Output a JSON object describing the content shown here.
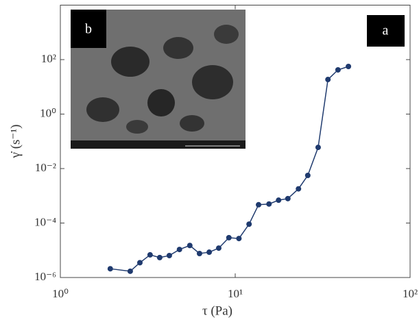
{
  "chart_data": {
    "type": "line",
    "xlabel": "τ (Pa)",
    "ylabel": "γ̇ (s⁻¹)",
    "log_x": true,
    "log_y": true,
    "x": [
      1.93,
      2.51,
      2.85,
      3.26,
      3.7,
      4.2,
      4.8,
      5.5,
      6.25,
      7.1,
      8.05,
      9.2,
      10.5,
      12,
      13.6,
      15.6,
      17.7,
      20,
      23,
      26,
      29.8,
      33.9,
      38.7,
      44.4
    ],
    "series": [
      {
        "color": "#1f3a6e",
        "values": [
          2.1e-06,
          1.7e-06,
          3.5e-06,
          6.8e-06,
          5.4e-06,
          6.4e-06,
          1.07e-05,
          1.5e-05,
          7.6e-06,
          8.5e-06,
          1.2e-05,
          2.9e-05,
          2.7e-05,
          9.1e-05,
          0.00047,
          0.0005,
          0.00069,
          0.00079,
          0.0018,
          0.0056,
          0.06,
          18.6,
          42,
          56
        ]
      }
    ],
    "xlim": [
      1,
      100
    ],
    "ylim": [
      1e-06,
      10000
    ],
    "xticks": [
      {
        "value": 1,
        "label": "10⁰"
      },
      {
        "value": 10,
        "label": "10¹"
      },
      {
        "value": 100,
        "label": "10²"
      }
    ],
    "yticks": [
      {
        "value": 1e-06,
        "label": "10⁻⁶"
      },
      {
        "value": 0.0001,
        "label": "10⁻⁴"
      },
      {
        "value": 0.01,
        "label": "10⁻²"
      },
      {
        "value": 1,
        "label": "10⁰"
      },
      {
        "value": 100,
        "label": "10²"
      }
    ],
    "annotations": [
      "a",
      "b"
    ]
  }
}
